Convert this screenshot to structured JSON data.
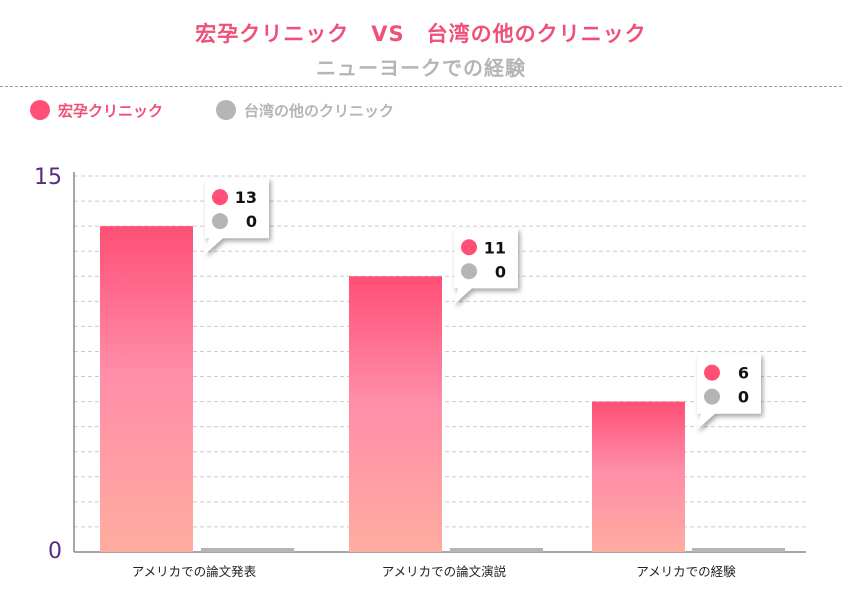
{
  "chart_data": {
    "type": "bar",
    "title": "宏孕クリニック　VS　台湾の他のクリニック",
    "subtitle": "ニューヨークでの経験",
    "categories": [
      "アメリカでの論文発表",
      "アメリカでの論文演説",
      "アメリカでの経験"
    ],
    "series": [
      {
        "name": "宏孕クリニック",
        "values": [
          13,
          11,
          6
        ],
        "color": "#ff4f76"
      },
      {
        "name": "台湾の他のクリニック",
        "values": [
          0,
          0,
          0
        ],
        "color": "#b5b5b5"
      }
    ],
    "ylim": [
      0,
      15
    ],
    "y_ticks": [
      "0",
      "15"
    ],
    "grid": "dashed horizontal",
    "legend_position": "top-left",
    "axis_label_color": "#5b2a86"
  }
}
